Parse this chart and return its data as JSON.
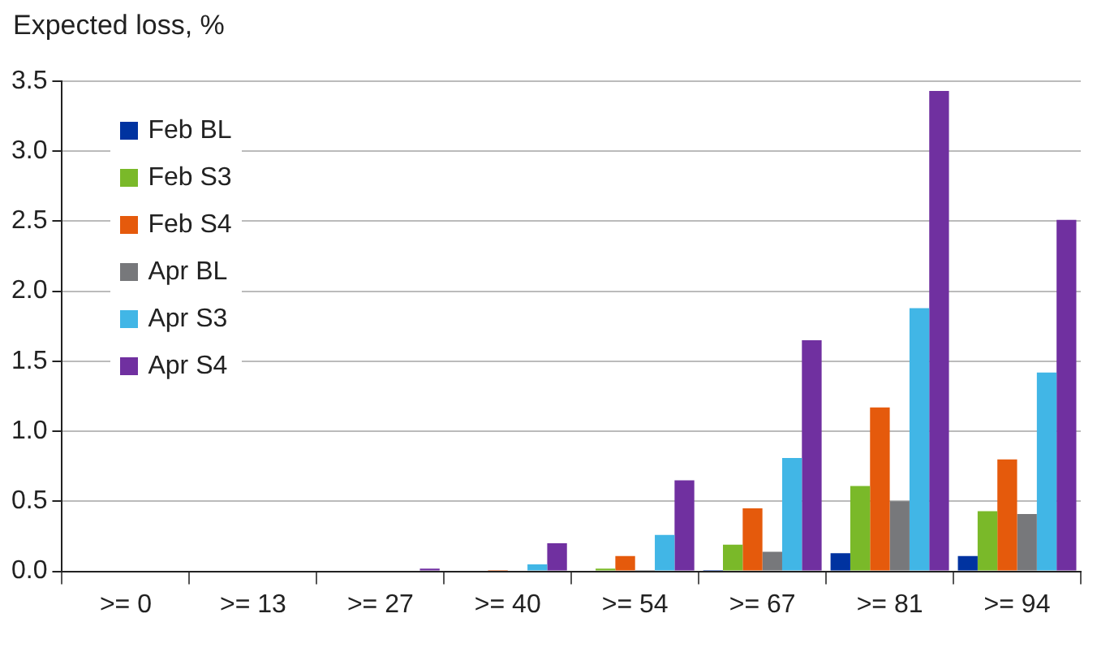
{
  "chart_data": {
    "type": "bar",
    "ylabel": "Expected loss, %",
    "categories": [
      ">= 0",
      ">= 13",
      ">= 27",
      ">= 40",
      ">= 54",
      ">= 67",
      ">= 81",
      ">= 94"
    ],
    "series": [
      {
        "name": "Feb BL",
        "color": "#0033a0",
        "values": [
          0,
          0,
          0,
          0,
          0,
          0.01,
          0.13,
          0.11
        ]
      },
      {
        "name": "Feb S3",
        "color": "#7ab929",
        "values": [
          0,
          0,
          0,
          0,
          0.02,
          0.19,
          0.61,
          0.43
        ]
      },
      {
        "name": "Feb S4",
        "color": "#e55a0c",
        "values": [
          0,
          0,
          0,
          0.01,
          0.11,
          0.45,
          1.17,
          0.8
        ]
      },
      {
        "name": "Apr BL",
        "color": "#77787b",
        "values": [
          0,
          0,
          0,
          0,
          0.01,
          0.14,
          0.5,
          0.41
        ]
      },
      {
        "name": "Apr S3",
        "color": "#41b6e6",
        "values": [
          0,
          0,
          0,
          0.05,
          0.26,
          0.81,
          1.88,
          1.42
        ]
      },
      {
        "name": "Apr S4",
        "color": "#7030a0",
        "values": [
          0,
          0,
          0.02,
          0.2,
          0.65,
          1.65,
          3.43,
          2.51
        ]
      }
    ],
    "ylim": [
      0,
      3.5
    ],
    "yticks": [
      {
        "value": 0,
        "label": "0.0"
      },
      {
        "value": 0.5,
        "label": "0.5"
      },
      {
        "value": 1,
        "label": "1.0"
      },
      {
        "value": 1.5,
        "label": "1.5"
      },
      {
        "value": 2,
        "label": "2.0"
      },
      {
        "value": 2.5,
        "label": "2.5"
      },
      {
        "value": 3,
        "label": "3.0"
      },
      {
        "value": 3.5,
        "label": "3.5"
      }
    ],
    "grid": "y",
    "legend": "top left"
  }
}
